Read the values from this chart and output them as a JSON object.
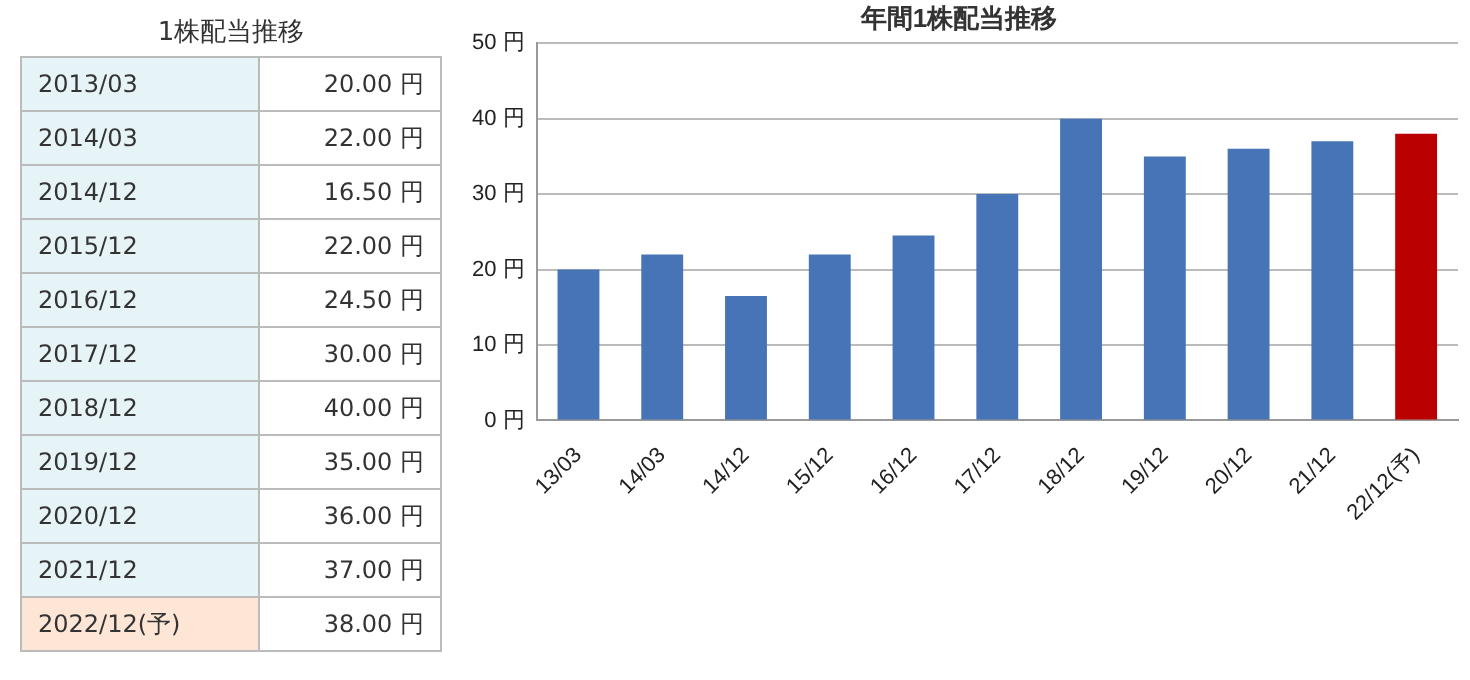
{
  "chart_data": [
    {
      "type": "other",
      "title": "1株配当推移",
      "categories": [
        "2013/03",
        "2014/03",
        "2014/12",
        "2015/12",
        "2016/12",
        "2017/12",
        "2018/12",
        "2019/12",
        "2020/12",
        "2021/12",
        "2022/12(予)"
      ],
      "value_labels": [
        "20.00 円",
        "22.00 円",
        "16.50 円",
        "22.00 円",
        "24.50 円",
        "30.00 円",
        "40.00 円",
        "35.00 円",
        "36.00 円",
        "37.00 円",
        "38.00 円"
      ],
      "colors": [
        "#e6f4f8",
        "#e6f4f8",
        "#e6f4f8",
        "#e6f4f8",
        "#e6f4f8",
        "#e6f4f8",
        "#e6f4f8",
        "#e6f4f8",
        "#e6f4f8",
        "#e6f4f8",
        "#fde6d6"
      ]
    },
    {
      "type": "bar",
      "title": "年間1株配当推移",
      "categories": [
        "13/03",
        "14/03",
        "14/12",
        "15/12",
        "16/12",
        "17/12",
        "18/12",
        "19/12",
        "20/12",
        "21/12",
        "22/12(予)"
      ],
      "values": [
        20,
        22,
        16.5,
        22,
        24.5,
        30,
        40,
        35,
        36,
        37,
        38
      ],
      "colors": [
        "#4674b6",
        "#4674b6",
        "#4674b6",
        "#4674b6",
        "#4674b6",
        "#4674b6",
        "#4674b6",
        "#4674b6",
        "#4674b6",
        "#4674b6",
        "#bb0000"
      ],
      "ylim": [
        0,
        50
      ],
      "yticks": [
        {
          "value": 0,
          "label": "0 円"
        },
        {
          "value": 10,
          "label": "10 円"
        },
        {
          "value": 20,
          "label": "20 円"
        },
        {
          "value": 30,
          "label": "30 円"
        },
        {
          "value": 40,
          "label": "40 円"
        },
        {
          "value": 50,
          "label": "50 円"
        }
      ],
      "grid": "y",
      "legend": false
    }
  ]
}
